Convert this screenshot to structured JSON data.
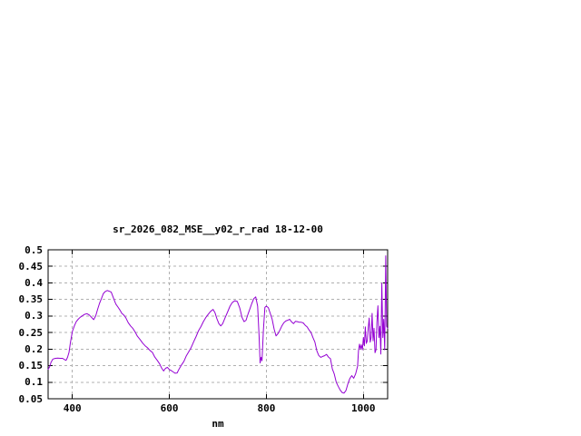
{
  "window": {
    "background": "#ffffff"
  },
  "chart_data": {
    "type": "line",
    "title": "sr_2026_082_MSE__y02_r_rad 18-12-00",
    "xlabel": "nm",
    "ylabel": "",
    "xlim": [
      350,
      1050
    ],
    "ylim": [
      0.05,
      0.5
    ],
    "grid": true,
    "legend_position": "none",
    "line_color": "#9400d3",
    "grid_color": "#b0b0b0",
    "axis_color": "#000000",
    "xticks": {
      "values": [
        400,
        600,
        800,
        1000
      ],
      "labels": [
        "400",
        "600",
        "800",
        "1000"
      ]
    },
    "yticks": {
      "values": [
        0.05,
        0.1,
        0.15,
        0.2,
        0.25,
        0.3,
        0.35,
        0.4,
        0.45,
        0.5
      ],
      "labels": [
        "0.05",
        "0.1",
        "0.15",
        "0.2",
        "0.25",
        "0.3",
        "0.35",
        "0.4",
        "0.45",
        "0.5"
      ]
    },
    "series": [
      {
        "x": [
          350,
          353,
          356,
          360,
          365,
          370,
          375,
          380,
          384,
          387,
          390,
          393,
          396,
          400,
          404,
          408,
          412,
          416,
          420,
          425,
          430,
          435,
          440,
          444,
          448,
          452,
          456,
          460,
          464,
          468,
          472,
          476,
          480,
          484,
          488,
          490,
          494,
          498,
          502,
          506,
          510,
          515,
          520,
          525,
          530,
          534,
          540,
          545,
          550,
          555,
          560,
          565,
          570,
          575,
          580,
          584,
          588,
          592,
          596,
          600,
          604,
          608,
          612,
          616,
          620,
          625,
          630,
          635,
          640,
          645,
          650,
          655,
          660,
          665,
          670,
          675,
          680,
          685,
          690,
          694,
          698,
          702,
          706,
          710,
          715,
          720,
          725,
          730,
          735,
          740,
          745,
          750,
          754,
          758,
          762,
          766,
          770,
          774,
          778,
          782,
          785,
          787,
          789,
          791,
          794,
          797,
          800,
          804,
          808,
          812,
          816,
          820,
          824,
          828,
          832,
          836,
          840,
          845,
          848,
          852,
          856,
          860,
          864,
          868,
          872,
          876,
          880,
          884,
          888,
          892,
          896,
          900,
          904,
          908,
          912,
          916,
          920,
          924,
          928,
          932,
          936,
          940,
          944,
          948,
          952,
          956,
          960,
          964,
          968,
          972,
          976,
          980,
          984,
          988,
          990,
          992,
          994,
          996,
          998,
          1000,
          1002,
          1004,
          1006,
          1008,
          1010,
          1012,
          1014,
          1016,
          1018,
          1020,
          1022,
          1024,
          1026,
          1028,
          1030,
          1032,
          1034,
          1036,
          1038,
          1040,
          1042,
          1044,
          1046,
          1048,
          1050
        ],
        "y": [
          0.139,
          0.146,
          0.16,
          0.17,
          0.172,
          0.173,
          0.172,
          0.172,
          0.168,
          0.166,
          0.175,
          0.19,
          0.22,
          0.253,
          0.27,
          0.283,
          0.29,
          0.296,
          0.3,
          0.305,
          0.307,
          0.303,
          0.295,
          0.289,
          0.3,
          0.32,
          0.338,
          0.353,
          0.368,
          0.374,
          0.377,
          0.375,
          0.372,
          0.357,
          0.342,
          0.335,
          0.327,
          0.318,
          0.308,
          0.303,
          0.295,
          0.28,
          0.27,
          0.262,
          0.25,
          0.239,
          0.228,
          0.218,
          0.21,
          0.204,
          0.196,
          0.19,
          0.176,
          0.166,
          0.155,
          0.143,
          0.134,
          0.142,
          0.145,
          0.138,
          0.135,
          0.131,
          0.127,
          0.128,
          0.14,
          0.152,
          0.163,
          0.18,
          0.192,
          0.205,
          0.222,
          0.238,
          0.255,
          0.268,
          0.283,
          0.295,
          0.305,
          0.314,
          0.32,
          0.31,
          0.292,
          0.277,
          0.27,
          0.277,
          0.295,
          0.312,
          0.33,
          0.341,
          0.346,
          0.344,
          0.325,
          0.295,
          0.283,
          0.287,
          0.305,
          0.322,
          0.338,
          0.352,
          0.358,
          0.33,
          0.24,
          0.158,
          0.175,
          0.165,
          0.26,
          0.326,
          0.33,
          0.325,
          0.308,
          0.29,
          0.26,
          0.24,
          0.247,
          0.258,
          0.27,
          0.28,
          0.285,
          0.288,
          0.29,
          0.282,
          0.277,
          0.284,
          0.283,
          0.281,
          0.281,
          0.279,
          0.272,
          0.267,
          0.258,
          0.25,
          0.235,
          0.221,
          0.195,
          0.181,
          0.175,
          0.178,
          0.18,
          0.184,
          0.176,
          0.171,
          0.14,
          0.125,
          0.1,
          0.088,
          0.077,
          0.069,
          0.067,
          0.075,
          0.095,
          0.111,
          0.12,
          0.112,
          0.125,
          0.148,
          0.195,
          0.215,
          0.2,
          0.213,
          0.198,
          0.235,
          0.21,
          0.267,
          0.217,
          0.225,
          0.263,
          0.294,
          0.221,
          0.235,
          0.308,
          0.225,
          0.263,
          0.189,
          0.198,
          0.281,
          0.331,
          0.235,
          0.269,
          0.185,
          0.399,
          0.235,
          0.29,
          0.198,
          0.482,
          0.269,
          0.262
        ]
      }
    ]
  }
}
